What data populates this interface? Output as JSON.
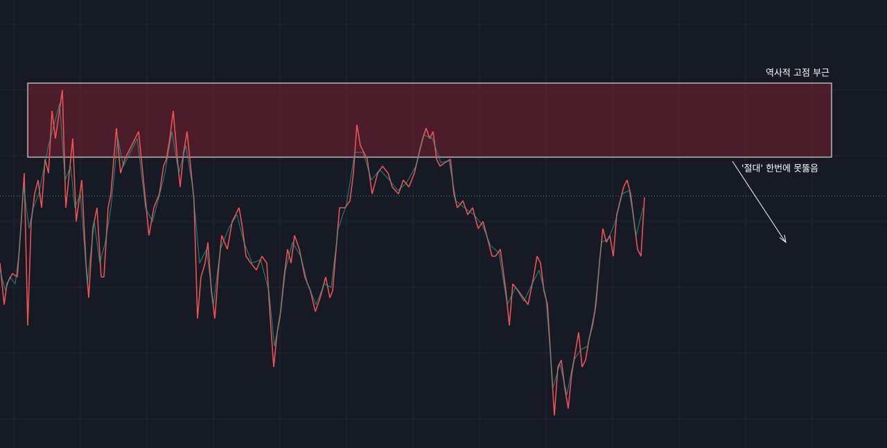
{
  "annotations": {
    "zone_label": "역사적 고점 부근",
    "arrow_label": "'절대' 한번에 못뚫음"
  }
}
